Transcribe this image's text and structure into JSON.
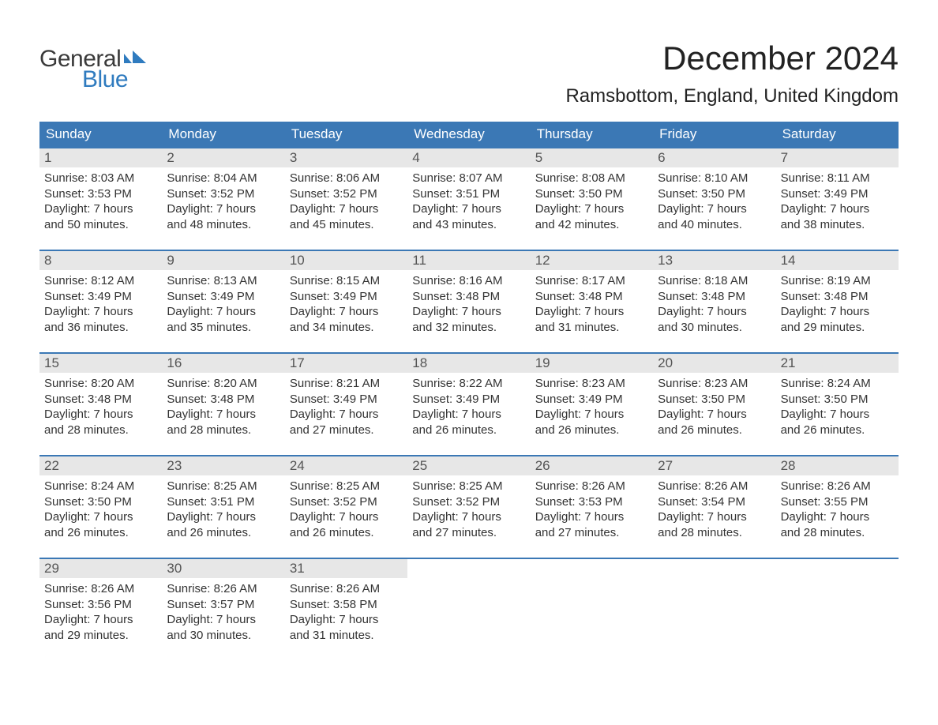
{
  "logo": {
    "text_general": "General",
    "text_blue": "Blue",
    "flag_color": "#2f7bbf"
  },
  "header": {
    "month_title": "December 2024",
    "location": "Ramsbottom, England, United Kingdom"
  },
  "colors": {
    "header_row_bg": "#3b78b5",
    "header_row_text": "#ffffff",
    "day_num_bg": "#e7e7e7",
    "week_rule": "#3b78b5",
    "body_text": "#333333",
    "page_bg": "#ffffff"
  },
  "typography": {
    "month_title_fontsize": 42,
    "location_fontsize": 24,
    "dow_fontsize": 17,
    "day_num_fontsize": 17,
    "body_fontsize": 15
  },
  "days_of_week": [
    "Sunday",
    "Monday",
    "Tuesday",
    "Wednesday",
    "Thursday",
    "Friday",
    "Saturday"
  ],
  "weeks": [
    [
      {
        "num": "1",
        "sunrise": "Sunrise: 8:03 AM",
        "sunset": "Sunset: 3:53 PM",
        "day1": "Daylight: 7 hours",
        "day2": "and 50 minutes."
      },
      {
        "num": "2",
        "sunrise": "Sunrise: 8:04 AM",
        "sunset": "Sunset: 3:52 PM",
        "day1": "Daylight: 7 hours",
        "day2": "and 48 minutes."
      },
      {
        "num": "3",
        "sunrise": "Sunrise: 8:06 AM",
        "sunset": "Sunset: 3:52 PM",
        "day1": "Daylight: 7 hours",
        "day2": "and 45 minutes."
      },
      {
        "num": "4",
        "sunrise": "Sunrise: 8:07 AM",
        "sunset": "Sunset: 3:51 PM",
        "day1": "Daylight: 7 hours",
        "day2": "and 43 minutes."
      },
      {
        "num": "5",
        "sunrise": "Sunrise: 8:08 AM",
        "sunset": "Sunset: 3:50 PM",
        "day1": "Daylight: 7 hours",
        "day2": "and 42 minutes."
      },
      {
        "num": "6",
        "sunrise": "Sunrise: 8:10 AM",
        "sunset": "Sunset: 3:50 PM",
        "day1": "Daylight: 7 hours",
        "day2": "and 40 minutes."
      },
      {
        "num": "7",
        "sunrise": "Sunrise: 8:11 AM",
        "sunset": "Sunset: 3:49 PM",
        "day1": "Daylight: 7 hours",
        "day2": "and 38 minutes."
      }
    ],
    [
      {
        "num": "8",
        "sunrise": "Sunrise: 8:12 AM",
        "sunset": "Sunset: 3:49 PM",
        "day1": "Daylight: 7 hours",
        "day2": "and 36 minutes."
      },
      {
        "num": "9",
        "sunrise": "Sunrise: 8:13 AM",
        "sunset": "Sunset: 3:49 PM",
        "day1": "Daylight: 7 hours",
        "day2": "and 35 minutes."
      },
      {
        "num": "10",
        "sunrise": "Sunrise: 8:15 AM",
        "sunset": "Sunset: 3:49 PM",
        "day1": "Daylight: 7 hours",
        "day2": "and 34 minutes."
      },
      {
        "num": "11",
        "sunrise": "Sunrise: 8:16 AM",
        "sunset": "Sunset: 3:48 PM",
        "day1": "Daylight: 7 hours",
        "day2": "and 32 minutes."
      },
      {
        "num": "12",
        "sunrise": "Sunrise: 8:17 AM",
        "sunset": "Sunset: 3:48 PM",
        "day1": "Daylight: 7 hours",
        "day2": "and 31 minutes."
      },
      {
        "num": "13",
        "sunrise": "Sunrise: 8:18 AM",
        "sunset": "Sunset: 3:48 PM",
        "day1": "Daylight: 7 hours",
        "day2": "and 30 minutes."
      },
      {
        "num": "14",
        "sunrise": "Sunrise: 8:19 AM",
        "sunset": "Sunset: 3:48 PM",
        "day1": "Daylight: 7 hours",
        "day2": "and 29 minutes."
      }
    ],
    [
      {
        "num": "15",
        "sunrise": "Sunrise: 8:20 AM",
        "sunset": "Sunset: 3:48 PM",
        "day1": "Daylight: 7 hours",
        "day2": "and 28 minutes."
      },
      {
        "num": "16",
        "sunrise": "Sunrise: 8:20 AM",
        "sunset": "Sunset: 3:48 PM",
        "day1": "Daylight: 7 hours",
        "day2": "and 28 minutes."
      },
      {
        "num": "17",
        "sunrise": "Sunrise: 8:21 AM",
        "sunset": "Sunset: 3:49 PM",
        "day1": "Daylight: 7 hours",
        "day2": "and 27 minutes."
      },
      {
        "num": "18",
        "sunrise": "Sunrise: 8:22 AM",
        "sunset": "Sunset: 3:49 PM",
        "day1": "Daylight: 7 hours",
        "day2": "and 26 minutes."
      },
      {
        "num": "19",
        "sunrise": "Sunrise: 8:23 AM",
        "sunset": "Sunset: 3:49 PM",
        "day1": "Daylight: 7 hours",
        "day2": "and 26 minutes."
      },
      {
        "num": "20",
        "sunrise": "Sunrise: 8:23 AM",
        "sunset": "Sunset: 3:50 PM",
        "day1": "Daylight: 7 hours",
        "day2": "and 26 minutes."
      },
      {
        "num": "21",
        "sunrise": "Sunrise: 8:24 AM",
        "sunset": "Sunset: 3:50 PM",
        "day1": "Daylight: 7 hours",
        "day2": "and 26 minutes."
      }
    ],
    [
      {
        "num": "22",
        "sunrise": "Sunrise: 8:24 AM",
        "sunset": "Sunset: 3:50 PM",
        "day1": "Daylight: 7 hours",
        "day2": "and 26 minutes."
      },
      {
        "num": "23",
        "sunrise": "Sunrise: 8:25 AM",
        "sunset": "Sunset: 3:51 PM",
        "day1": "Daylight: 7 hours",
        "day2": "and 26 minutes."
      },
      {
        "num": "24",
        "sunrise": "Sunrise: 8:25 AM",
        "sunset": "Sunset: 3:52 PM",
        "day1": "Daylight: 7 hours",
        "day2": "and 26 minutes."
      },
      {
        "num": "25",
        "sunrise": "Sunrise: 8:25 AM",
        "sunset": "Sunset: 3:52 PM",
        "day1": "Daylight: 7 hours",
        "day2": "and 27 minutes."
      },
      {
        "num": "26",
        "sunrise": "Sunrise: 8:26 AM",
        "sunset": "Sunset: 3:53 PM",
        "day1": "Daylight: 7 hours",
        "day2": "and 27 minutes."
      },
      {
        "num": "27",
        "sunrise": "Sunrise: 8:26 AM",
        "sunset": "Sunset: 3:54 PM",
        "day1": "Daylight: 7 hours",
        "day2": "and 28 minutes."
      },
      {
        "num": "28",
        "sunrise": "Sunrise: 8:26 AM",
        "sunset": "Sunset: 3:55 PM",
        "day1": "Daylight: 7 hours",
        "day2": "and 28 minutes."
      }
    ],
    [
      {
        "num": "29",
        "sunrise": "Sunrise: 8:26 AM",
        "sunset": "Sunset: 3:56 PM",
        "day1": "Daylight: 7 hours",
        "day2": "and 29 minutes."
      },
      {
        "num": "30",
        "sunrise": "Sunrise: 8:26 AM",
        "sunset": "Sunset: 3:57 PM",
        "day1": "Daylight: 7 hours",
        "day2": "and 30 minutes."
      },
      {
        "num": "31",
        "sunrise": "Sunrise: 8:26 AM",
        "sunset": "Sunset: 3:58 PM",
        "day1": "Daylight: 7 hours",
        "day2": "and 31 minutes."
      },
      null,
      null,
      null,
      null
    ]
  ]
}
